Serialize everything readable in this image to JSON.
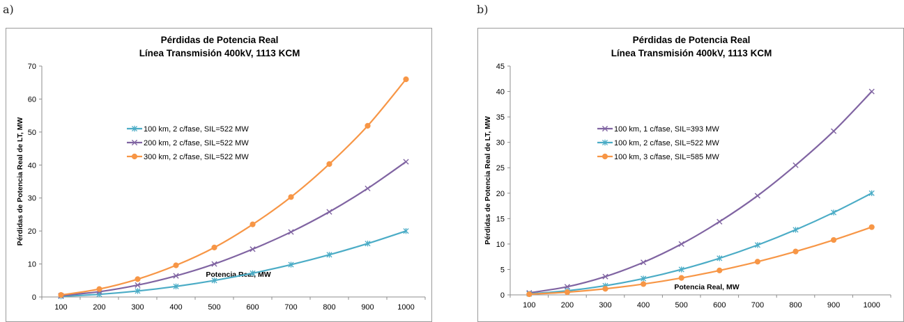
{
  "panels": [
    {
      "label": "a)"
    },
    {
      "label": "b)"
    }
  ],
  "chart_data": [
    {
      "type": "line",
      "title": [
        "Pérdidas de Potencia Real",
        "Línea  Transmisión 400kV, 1113 KCM"
      ],
      "xlabel": "Potencia Real, MW",
      "ylabel": "Pérdidas de Potencia Real de  LT, MW",
      "x": [
        100,
        200,
        300,
        400,
        500,
        600,
        700,
        800,
        900,
        1000
      ],
      "ylim": [
        0,
        70
      ],
      "yticks": [
        0,
        10,
        20,
        30,
        40,
        50,
        60,
        70
      ],
      "grid": false,
      "legend_position": "center-left",
      "series": [
        {
          "name": "100 km, 2 c/fase, SIL=522 MW",
          "color": "#4bacc6",
          "marker": "asterisk",
          "values": [
            0.2,
            0.8,
            1.8,
            3.2,
            5.0,
            7.2,
            9.8,
            12.8,
            16.2,
            20.0
          ]
        },
        {
          "name": "200 km, 2 c/fase, SIL=522 MW",
          "color": "#8064a2",
          "marker": "x",
          "values": [
            0.4,
            1.6,
            3.6,
            6.4,
            10.0,
            14.5,
            19.7,
            25.8,
            32.9,
            41.0
          ]
        },
        {
          "name": "300 km, 2 c/fase, SIL=522 MW",
          "color": "#f79646",
          "marker": "circle",
          "values": [
            0.6,
            2.4,
            5.4,
            9.6,
            15.0,
            22.0,
            30.3,
            40.3,
            51.9,
            66.0
          ]
        }
      ]
    },
    {
      "type": "line",
      "title": [
        "Pérdidas de Potencia Real",
        "Línea  Transmisión 400kV, 1113 KCM"
      ],
      "xlabel": "Potencia Real, MW",
      "ylabel": "Pérdidas de Potencia Real de  LT, MW",
      "x": [
        100,
        200,
        300,
        400,
        500,
        600,
        700,
        800,
        900,
        1000
      ],
      "ylim": [
        0,
        45
      ],
      "yticks": [
        0,
        5,
        10,
        15,
        20,
        25,
        30,
        35,
        40,
        45
      ],
      "grid": false,
      "legend_position": "center-left",
      "series": [
        {
          "name": "100 km, 1 c/fase, SIL=393 MW",
          "color": "#8064a2",
          "marker": "x",
          "values": [
            0.4,
            1.6,
            3.6,
            6.4,
            10.0,
            14.4,
            19.5,
            25.5,
            32.2,
            40.0
          ]
        },
        {
          "name": "100 km, 2 c/fase, SIL=522 MW",
          "color": "#4bacc6",
          "marker": "asterisk",
          "values": [
            0.2,
            0.8,
            1.8,
            3.2,
            5.0,
            7.2,
            9.8,
            12.8,
            16.2,
            20.0
          ]
        },
        {
          "name": "100 km, 3 c/fase, SIL=585 MW",
          "color": "#f79646",
          "marker": "circle",
          "values": [
            0.13,
            0.53,
            1.2,
            2.13,
            3.33,
            4.8,
            6.53,
            8.53,
            10.8,
            13.33
          ]
        }
      ]
    }
  ]
}
